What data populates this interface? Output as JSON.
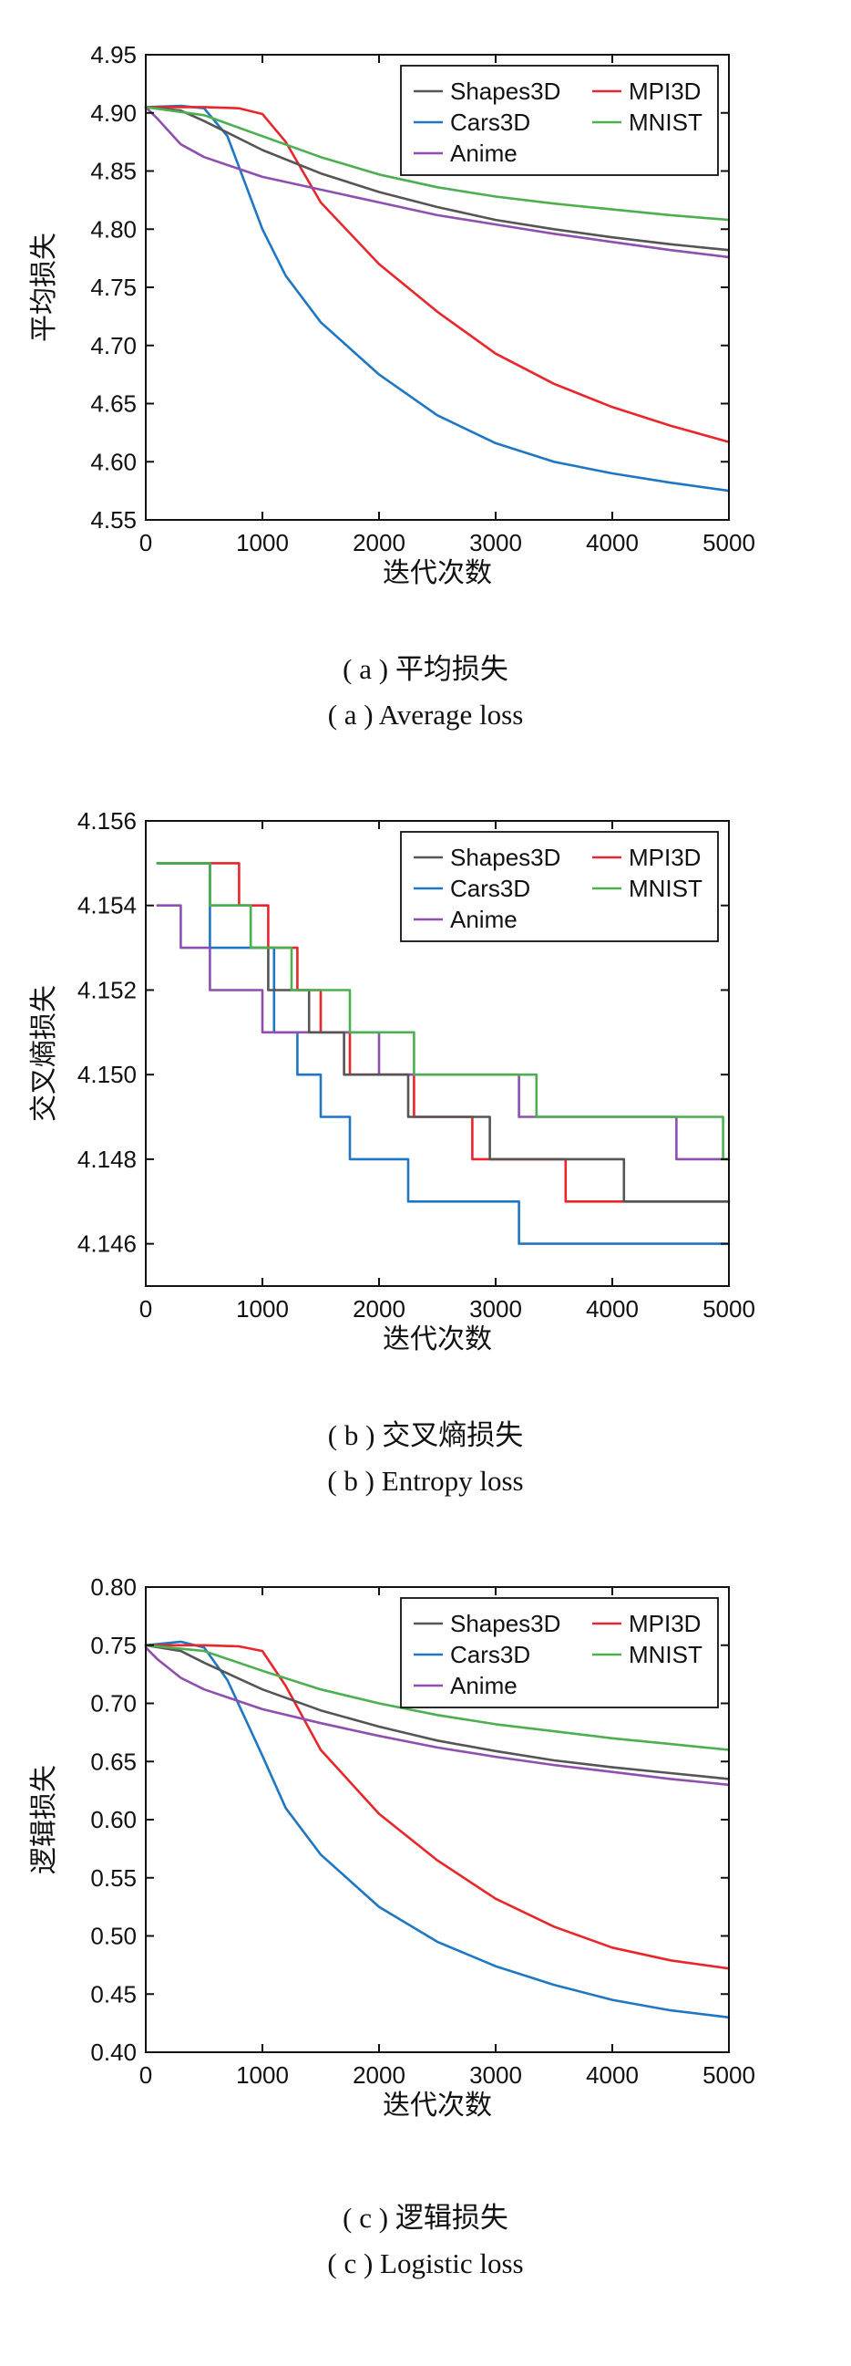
{
  "figure": {
    "a": {
      "caption_cn": "( a ) 平均损失",
      "caption_en": "( a ) Average loss"
    },
    "b": {
      "caption_cn": "( b ) 交叉熵损失",
      "caption_en": "( b ) Entropy loss"
    },
    "c": {
      "caption_cn": "( c ) 逻辑损失",
      "caption_en": "( c ) Logistic loss"
    }
  },
  "colors": {
    "Shapes3D": "#555555",
    "Cars3D": "#1f77c4",
    "Anime": "#8e4fb0",
    "MPI3D": "#e8262b",
    "MNIST": "#4caf50"
  },
  "chart_data": [
    {
      "id": "avg",
      "type": "line",
      "title": "",
      "xlabel": "迭代次数",
      "ylabel": "平均损失",
      "xlim": [
        0,
        5000
      ],
      "ylim": [
        4.55,
        4.95
      ],
      "xticks": [
        0,
        1000,
        2000,
        3000,
        4000,
        5000
      ],
      "xtick_labels": [
        "0",
        "1000",
        "2000",
        "3000",
        "4000",
        "5000"
      ],
      "yticks": [
        4.55,
        4.6,
        4.65,
        4.7,
        4.75,
        4.8,
        4.85,
        4.9,
        4.95
      ],
      "ytick_labels": [
        "4.55",
        "4.60",
        "4.65",
        "4.70",
        "4.75",
        "4.80",
        "4.85",
        "4.90",
        "4.95"
      ],
      "legend": [
        "Shapes3D",
        "MPI3D",
        "Cars3D",
        "MNIST",
        "Anime"
      ],
      "legend_position": "top-right",
      "step": false,
      "series": [
        {
          "name": "Shapes3D",
          "x": [
            0,
            300,
            500,
            1000,
            1500,
            2000,
            2500,
            3000,
            3500,
            4000,
            4500,
            5000
          ],
          "y": [
            4.905,
            4.902,
            4.893,
            4.868,
            4.848,
            4.832,
            4.819,
            4.808,
            4.8,
            4.793,
            4.787,
            4.782
          ]
        },
        {
          "name": "MPI3D",
          "x": [
            0,
            500,
            800,
            1000,
            1200,
            1500,
            2000,
            2500,
            3000,
            3500,
            4000,
            4500,
            5000
          ],
          "y": [
            4.905,
            4.905,
            4.904,
            4.899,
            4.875,
            4.823,
            4.77,
            4.729,
            4.693,
            4.667,
            4.647,
            4.631,
            4.617
          ]
        },
        {
          "name": "Cars3D",
          "x": [
            0,
            300,
            500,
            700,
            1000,
            1200,
            1500,
            2000,
            2500,
            3000,
            3500,
            4000,
            4500,
            5000
          ],
          "y": [
            4.905,
            4.906,
            4.904,
            4.88,
            4.8,
            4.76,
            4.72,
            4.675,
            4.64,
            4.616,
            4.6,
            4.59,
            4.582,
            4.575
          ]
        },
        {
          "name": "MNIST",
          "x": [
            0,
            500,
            1000,
            1500,
            2000,
            2500,
            3000,
            3500,
            4000,
            4500,
            5000
          ],
          "y": [
            4.905,
            4.898,
            4.88,
            4.862,
            4.847,
            4.836,
            4.828,
            4.822,
            4.817,
            4.812,
            4.808
          ]
        },
        {
          "name": "Anime",
          "x": [
            0,
            100,
            300,
            500,
            1000,
            1500,
            2000,
            2500,
            3000,
            3500,
            4000,
            4500,
            5000
          ],
          "y": [
            4.905,
            4.895,
            4.873,
            4.862,
            4.845,
            4.834,
            4.823,
            4.812,
            4.804,
            4.796,
            4.789,
            4.782,
            4.776
          ]
        }
      ]
    },
    {
      "id": "entropy",
      "type": "line",
      "title": "",
      "xlabel": "迭代次数",
      "ylabel": "交叉熵损失",
      "xlim": [
        0,
        5000
      ],
      "ylim": [
        4.145,
        4.156
      ],
      "xticks": [
        0,
        1000,
        2000,
        3000,
        4000,
        5000
      ],
      "xtick_labels": [
        "0",
        "1000",
        "2000",
        "3000",
        "4000",
        "5000"
      ],
      "yticks": [
        4.146,
        4.148,
        4.15,
        4.152,
        4.154,
        4.156
      ],
      "ytick_labels": [
        "4.146",
        "4.148",
        "4.150",
        "4.152",
        "4.154",
        "4.156"
      ],
      "legend": [
        "Shapes3D",
        "MPI3D",
        "Cars3D",
        "MNIST",
        "Anime"
      ],
      "legend_position": "top-right",
      "step": true,
      "series": [
        {
          "name": "Shapes3D",
          "x": [
            100,
            550,
            900,
            1050,
            1400,
            1700,
            2250,
            2950,
            4100,
            5000
          ],
          "y": [
            4.155,
            4.154,
            4.153,
            4.152,
            4.151,
            4.15,
            4.149,
            4.148,
            4.147,
            4.147
          ]
        },
        {
          "name": "MPI3D",
          "x": [
            100,
            800,
            1050,
            1300,
            1500,
            1750,
            2300,
            2800,
            3600,
            5000
          ],
          "y": [
            4.155,
            4.154,
            4.153,
            4.152,
            4.151,
            4.15,
            4.149,
            4.148,
            4.147,
            4.147
          ]
        },
        {
          "name": "Cars3D",
          "x": [
            100,
            550,
            1100,
            1300,
            1500,
            1750,
            2250,
            3200,
            5000
          ],
          "y": [
            4.155,
            4.153,
            4.151,
            4.15,
            4.149,
            4.148,
            4.147,
            4.146,
            4.146
          ]
        },
        {
          "name": "MNIST",
          "x": [
            100,
            550,
            900,
            1250,
            1750,
            2300,
            3350,
            4950,
            5000
          ],
          "y": [
            4.155,
            4.154,
            4.153,
            4.152,
            4.151,
            4.15,
            4.149,
            4.148,
            4.148
          ]
        },
        {
          "name": "Anime",
          "x": [
            100,
            300,
            550,
            1000,
            2000,
            3200,
            4550,
            5000
          ],
          "y": [
            4.154,
            4.153,
            4.152,
            4.151,
            4.15,
            4.149,
            4.148,
            4.148
          ]
        }
      ]
    },
    {
      "id": "logistic",
      "type": "line",
      "title": "",
      "xlabel": "迭代次数",
      "ylabel": "逻辑损失",
      "xlim": [
        0,
        5000
      ],
      "ylim": [
        0.4,
        0.8
      ],
      "xticks": [
        0,
        1000,
        2000,
        3000,
        4000,
        5000
      ],
      "xtick_labels": [
        "0",
        "1000",
        "2000",
        "3000",
        "4000",
        "5000"
      ],
      "yticks": [
        0.4,
        0.45,
        0.5,
        0.55,
        0.6,
        0.65,
        0.7,
        0.75,
        0.8
      ],
      "ytick_labels": [
        "0.40",
        "0.45",
        "0.50",
        "0.55",
        "0.60",
        "0.65",
        "0.70",
        "0.75",
        "0.80"
      ],
      "legend": [
        "Shapes3D",
        "MPI3D",
        "Cars3D",
        "MNIST",
        "Anime"
      ],
      "legend_position": "top-right",
      "step": false,
      "series": [
        {
          "name": "Shapes3D",
          "x": [
            0,
            300,
            500,
            1000,
            1500,
            2000,
            2500,
            3000,
            3500,
            4000,
            4500,
            5000
          ],
          "y": [
            0.75,
            0.745,
            0.735,
            0.712,
            0.694,
            0.68,
            0.668,
            0.659,
            0.651,
            0.645,
            0.64,
            0.635
          ]
        },
        {
          "name": "MPI3D",
          "x": [
            0,
            500,
            800,
            1000,
            1200,
            1500,
            2000,
            2500,
            3000,
            3500,
            4000,
            4500,
            5000
          ],
          "y": [
            0.75,
            0.75,
            0.749,
            0.745,
            0.715,
            0.66,
            0.605,
            0.565,
            0.532,
            0.508,
            0.49,
            0.479,
            0.472
          ]
        },
        {
          "name": "Cars3D",
          "x": [
            0,
            300,
            500,
            700,
            1000,
            1200,
            1500,
            2000,
            2500,
            3000,
            3500,
            4000,
            4500,
            5000
          ],
          "y": [
            0.75,
            0.753,
            0.748,
            0.72,
            0.655,
            0.61,
            0.57,
            0.525,
            0.495,
            0.474,
            0.458,
            0.445,
            0.436,
            0.43
          ]
        },
        {
          "name": "MNIST",
          "x": [
            0,
            500,
            1000,
            1500,
            2000,
            2500,
            3000,
            3500,
            4000,
            4500,
            5000
          ],
          "y": [
            0.75,
            0.745,
            0.728,
            0.712,
            0.7,
            0.69,
            0.682,
            0.676,
            0.67,
            0.665,
            0.66
          ]
        },
        {
          "name": "Anime",
          "x": [
            0,
            100,
            300,
            500,
            1000,
            1500,
            2000,
            2500,
            3000,
            3500,
            4000,
            4500,
            5000
          ],
          "y": [
            0.748,
            0.738,
            0.722,
            0.712,
            0.695,
            0.683,
            0.672,
            0.662,
            0.654,
            0.647,
            0.641,
            0.635,
            0.63
          ]
        }
      ]
    }
  ]
}
